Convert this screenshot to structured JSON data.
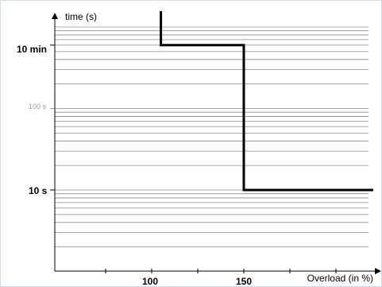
{
  "chart_data": {
    "type": "line",
    "ylabel": "time (s)",
    "xlabel": "Overload (in %)",
    "x_tick_labels": [
      "100",
      "150"
    ],
    "y_tick_labels": [
      "10 min",
      "100 s",
      "10 s"
    ],
    "y_scale": "log",
    "grid": "horizontal minor log grid",
    "series": [
      {
        "x": [
          105,
          105,
          150,
          150,
          230
        ],
        "y": [
          3000,
          600,
          600,
          10,
          10
        ]
      }
    ],
    "colors": {
      "curve": "#000000",
      "grid": "#8c8c8c",
      "axis": "#000000",
      "muted_label": "#9a9a9a",
      "background": "#ffffff",
      "border": "#dde8f3"
    }
  }
}
